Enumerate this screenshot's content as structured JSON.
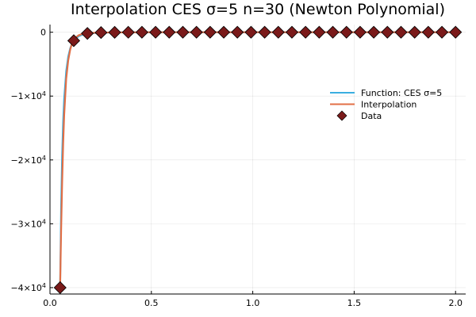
{
  "chart_data": {
    "type": "line",
    "title": "Interpolation CES σ=5 n=30  (Newton Polynomial)",
    "xlabel": "",
    "ylabel": "",
    "xlim": [
      0,
      2.05
    ],
    "ylim": [
      -41000,
      1200
    ],
    "grid": true,
    "legend_position": "right",
    "x_ticks": [
      {
        "value": 0.0,
        "label": "0.0"
      },
      {
        "value": 0.5,
        "label": "0.5"
      },
      {
        "value": 1.0,
        "label": "1.0"
      },
      {
        "value": 1.5,
        "label": "1.5"
      },
      {
        "value": 2.0,
        "label": "2.0"
      }
    ],
    "y_ticks": [
      {
        "value": 0,
        "label": "0",
        "base": "",
        "exp": ""
      },
      {
        "value": -10000,
        "label": "",
        "base": "−1×10",
        "exp": "4"
      },
      {
        "value": -20000,
        "label": "",
        "base": "−2×10",
        "exp": "4"
      },
      {
        "value": -30000,
        "label": "",
        "base": "−3×10",
        "exp": "4"
      },
      {
        "value": -40000,
        "label": "",
        "base": "−4×10",
        "exp": "4"
      }
    ],
    "series": [
      {
        "name": "Function: CES σ=5",
        "kind": "line",
        "color": "#3aaee0",
        "x": [
          0.05,
          0.055,
          0.06,
          0.065,
          0.07,
          0.08,
          0.09,
          0.1,
          0.11,
          0.12,
          0.14,
          0.16,
          0.2,
          0.3,
          0.5,
          1.0,
          1.5,
          2.0
        ],
        "y": [
          -40000,
          -27320,
          -19290,
          -14000,
          -10410,
          -6100,
          -3810,
          -2500,
          -1710,
          -1210,
          -650,
          -380,
          -156,
          -31,
          -4,
          -0.25,
          -0.05,
          -0.02
        ]
      },
      {
        "name": "Interpolation",
        "kind": "line",
        "color": "#e26f46",
        "x": [
          0.05,
          0.055,
          0.06,
          0.065,
          0.07,
          0.08,
          0.09,
          0.1,
          0.11,
          0.12,
          0.14,
          0.16,
          0.2,
          0.3,
          0.5,
          1.0,
          1.5,
          2.0
        ],
        "y": [
          -40000,
          -31000,
          -23500,
          -17500,
          -13000,
          -7300,
          -4400,
          -2700,
          -1600,
          -1000,
          -500,
          -250,
          -100,
          -31,
          -4,
          -0.25,
          -0.05,
          -0.02
        ]
      },
      {
        "name": "Data",
        "kind": "scatter",
        "color": "#7a1a1a",
        "x": [
          0.05,
          0.1172,
          0.1845,
          0.2517,
          0.319,
          0.3862,
          0.4534,
          0.5207,
          0.5879,
          0.6552,
          0.7224,
          0.7897,
          0.8569,
          0.9241,
          0.9914,
          1.0586,
          1.1259,
          1.1931,
          1.2603,
          1.3276,
          1.3948,
          1.4621,
          1.5293,
          1.5966,
          1.6638,
          1.731,
          1.7983,
          1.8655,
          1.9328,
          2.0
        ],
        "y": [
          -40000,
          -1325,
          -188,
          -50,
          -19,
          -9,
          -5,
          -3,
          -2,
          -1.2,
          -0.8,
          -0.6,
          -0.4,
          -0.3,
          -0.25,
          -0.2,
          -0.15,
          -0.12,
          -0.1,
          -0.08,
          -0.07,
          -0.06,
          -0.05,
          -0.04,
          -0.04,
          -0.03,
          -0.03,
          -0.03,
          -0.02,
          -0.02
        ]
      }
    ]
  }
}
